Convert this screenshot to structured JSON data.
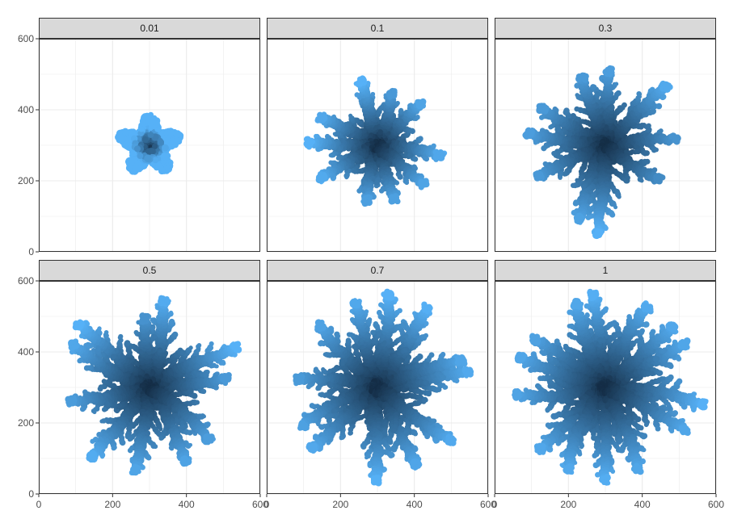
{
  "chart_data": {
    "type": "scatter",
    "layout": "facet-grid",
    "facet_order": [
      "0.01",
      "0.1",
      "0.3",
      "0.5",
      "0.7",
      "1"
    ],
    "xlim": [
      0,
      600
    ],
    "ylim": [
      0,
      600
    ],
    "x_ticks": [
      0,
      200,
      400,
      600
    ],
    "y_ticks": [
      0,
      200,
      400,
      600
    ],
    "x_tick_labels": [
      "0",
      "200",
      "400",
      "600"
    ],
    "y_tick_labels": [
      "0",
      "200",
      "400",
      "600"
    ],
    "grid": true,
    "colors": {
      "low": "#132B43",
      "high": "#56B1F7",
      "strip_fill": "#d9d9d9",
      "grid": "#ebebeb"
    },
    "color_encoding": "distance from center (dark at center, light at tips)",
    "facets": [
      {
        "label": "0.01",
        "center": [
          300,
          300
        ],
        "arms": 0,
        "blob_radius": 85,
        "arm_angles_deg": []
      },
      {
        "label": "0.1",
        "center": [
          300,
          300
        ],
        "arms": 10,
        "arm_angles_deg": [
          0,
          40,
          72,
          105,
          140,
          180,
          215,
          250,
          285,
          320
        ],
        "arm_lengths": [
          170,
          165,
          150,
          185,
          170,
          185,
          175,
          160,
          160,
          165
        ]
      },
      {
        "label": "0.3",
        "center": [
          300,
          300
        ],
        "arms": 10,
        "arm_angles_deg": [
          15,
          50,
          80,
          110,
          150,
          175,
          205,
          245,
          275,
          320
        ],
        "arm_lengths": [
          190,
          235,
          210,
          200,
          200,
          210,
          200,
          220,
          250,
          175
        ]
      },
      {
        "label": "0.5",
        "center": [
          300,
          300
        ],
        "arms": 11,
        "arm_angles_deg": [
          5,
          35,
          72,
          100,
          135,
          160,
          200,
          230,
          265,
          300,
          330
        ],
        "arm_lengths": [
          210,
          260,
          250,
          195,
          260,
          240,
          215,
          250,
          235,
          230,
          220
        ]
      },
      {
        "label": "0.7",
        "center": [
          300,
          300
        ],
        "arms": 12,
        "arm_angles_deg": [
          0,
          30,
          60,
          85,
          115,
          140,
          165,
          200,
          230,
          260,
          295,
          325
        ],
        "arm_lengths": [
          250,
          240,
          260,
          265,
          245,
          235,
          215,
          230,
          245,
          265,
          240,
          250
        ]
      },
      {
        "label": "1",
        "center": [
          300,
          300
        ],
        "arms": 14,
        "arm_angles_deg": [
          0,
          25,
          50,
          75,
          100,
          122,
          145,
          170,
          195,
          220,
          245,
          270,
          300,
          330
        ],
        "arm_lengths": [
          270,
          245,
          250,
          255,
          265,
          250,
          235,
          245,
          240,
          250,
          255,
          260,
          245,
          245
        ]
      }
    ]
  }
}
